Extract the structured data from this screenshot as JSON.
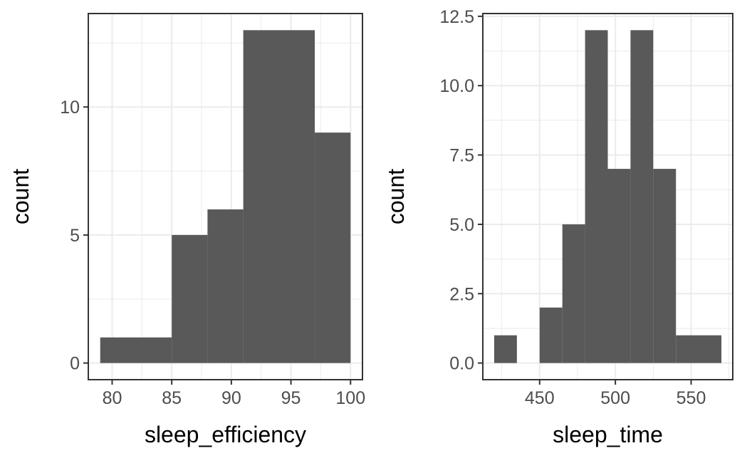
{
  "chart_data": [
    {
      "type": "bar",
      "subtype": "histogram",
      "xlabel": "sleep_efficiency",
      "ylabel": "count",
      "xlim": [
        78,
        101
      ],
      "ylim": [
        -0.65,
        13.65
      ],
      "x_ticks": [
        80,
        85,
        90,
        95,
        100
      ],
      "x_tick_labels": [
        "80",
        "85",
        "90",
        "95",
        "100"
      ],
      "y_ticks": [
        0,
        5,
        10
      ],
      "y_tick_labels": [
        "0",
        "5",
        "10"
      ],
      "bins": [
        {
          "x0": 79,
          "x1": 85,
          "count": 1
        },
        {
          "x0": 85,
          "x1": 88,
          "count": 5
        },
        {
          "x0": 88,
          "x1": 91,
          "count": 6
        },
        {
          "x0": 91,
          "x1": 97,
          "count": 13
        },
        {
          "x0": 97,
          "x1": 100,
          "count": 9
        }
      ],
      "bar_color": "#595959",
      "grid": true,
      "legend": "none"
    },
    {
      "type": "bar",
      "subtype": "histogram",
      "xlabel": "sleep_time",
      "ylabel": "count",
      "xlim": [
        412.5,
        577.5
      ],
      "ylim": [
        -0.6,
        12.6
      ],
      "x_ticks": [
        450,
        500,
        550
      ],
      "x_tick_labels": [
        "450",
        "500",
        "550"
      ],
      "y_ticks": [
        0,
        2.5,
        5,
        7.5,
        10,
        12.5
      ],
      "y_tick_labels": [
        "0.0",
        "2.5",
        "5.0",
        "7.5",
        "10.0",
        "12.5"
      ],
      "bins": [
        {
          "x0": 420,
          "x1": 435,
          "count": 1
        },
        {
          "x0": 435,
          "x1": 450,
          "count": 0
        },
        {
          "x0": 450,
          "x1": 465,
          "count": 2
        },
        {
          "x0": 465,
          "x1": 480,
          "count": 5
        },
        {
          "x0": 480,
          "x1": 495,
          "count": 12
        },
        {
          "x0": 495,
          "x1": 510,
          "count": 7
        },
        {
          "x0": 510,
          "x1": 525,
          "count": 12
        },
        {
          "x0": 525,
          "x1": 540,
          "count": 7
        },
        {
          "x0": 540,
          "x1": 570,
          "count": 1
        }
      ],
      "bar_color": "#595959",
      "grid": true,
      "legend": "none"
    }
  ]
}
